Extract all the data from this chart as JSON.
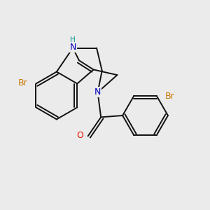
{
  "bg": "#ebebeb",
  "bc": "#111111",
  "lw": 1.4,
  "fs": 9,
  "Br_col": "#cc7700",
  "NH_col": "#0000bb",
  "N_col": "#0000bb",
  "O_col": "#ee1100",
  "xlim": [
    -1.85,
    2.0
  ],
  "ylim": [
    -1.7,
    1.55
  ]
}
